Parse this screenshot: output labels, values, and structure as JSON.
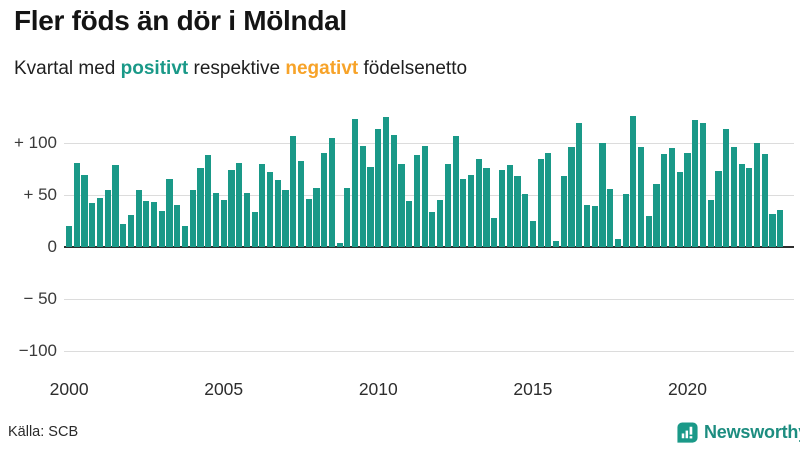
{
  "header": {
    "title": "Fler föds än dör i Mölndal",
    "subtitle_parts": {
      "lead": "Kvartal med ",
      "positive_word": "positivt",
      "middle": " respektive ",
      "negative_word": "negativt",
      "tail": " födelsenetto"
    }
  },
  "colors": {
    "positive": "#1a9988",
    "negative": "#f7a329",
    "grid": "#dcdcdc",
    "zero_axis": "#2e2e2e",
    "title_text": "#141414",
    "brand_teal": "#1d8d80"
  },
  "chart_data": {
    "type": "bar",
    "title": "Fler föds än dör i Mölndal",
    "subtitle": "Kvartal med positivt respektive negativt födelsenetto",
    "grid": true,
    "legend": "none",
    "ylim": [
      -100,
      130
    ],
    "yticks": [
      {
        "value": 100,
        "label": "+ 100"
      },
      {
        "value": 50,
        "label": "+ 50"
      },
      {
        "value": 0,
        "label": "0"
      },
      {
        "value": -50,
        "label": "− 50"
      },
      {
        "value": -100,
        "label": "−100"
      }
    ],
    "xticks": [
      {
        "year": 2000,
        "label": "2000"
      },
      {
        "year": 2005,
        "label": "2005"
      },
      {
        "year": 2010,
        "label": "2010"
      },
      {
        "year": 2015,
        "label": "2015"
      },
      {
        "year": 2020,
        "label": "2020"
      }
    ],
    "x": [
      "2000K1",
      "2000K2",
      "2000K3",
      "2000K4",
      "2001K1",
      "2001K2",
      "2001K3",
      "2001K4",
      "2002K1",
      "2002K2",
      "2002K3",
      "2002K4",
      "2003K1",
      "2003K2",
      "2003K3",
      "2003K4",
      "2004K1",
      "2004K2",
      "2004K3",
      "2004K4",
      "2005K1",
      "2005K2",
      "2005K3",
      "2005K4",
      "2006K1",
      "2006K2",
      "2006K3",
      "2006K4",
      "2007K1",
      "2007K2",
      "2007K3",
      "2007K4",
      "2008K1",
      "2008K2",
      "2008K3",
      "2008K4",
      "2009K1",
      "2009K2",
      "2009K3",
      "2009K4",
      "2010K1",
      "2010K2",
      "2010K3",
      "2010K4",
      "2011K1",
      "2011K2",
      "2011K3",
      "2011K4",
      "2012K1",
      "2012K2",
      "2012K3",
      "2012K4",
      "2013K1",
      "2013K2",
      "2013K3",
      "2013K4",
      "2014K1",
      "2014K2",
      "2014K3",
      "2014K4",
      "2015K1",
      "2015K2",
      "2015K3",
      "2015K4",
      "2016K1",
      "2016K2",
      "2016K3",
      "2016K4",
      "2017K1",
      "2017K2",
      "2017K3",
      "2017K4",
      "2018K1",
      "2018K2",
      "2018K3",
      "2018K4",
      "2019K1",
      "2019K2",
      "2019K3",
      "2019K4",
      "2020K1",
      "2020K2",
      "2020K3",
      "2020K4",
      "2021K1",
      "2021K2",
      "2021K3",
      "2021K4",
      "2022K1",
      "2022K2",
      "2022K3",
      "2022K4",
      "2023K1"
    ],
    "values": [
      20,
      81,
      69,
      42,
      47,
      55,
      79,
      22,
      31,
      55,
      44,
      43,
      35,
      65,
      40,
      20,
      55,
      76,
      88,
      52,
      45,
      74,
      81,
      52,
      34,
      80,
      72,
      64,
      55,
      107,
      83,
      46,
      57,
      90,
      105,
      4,
      57,
      123,
      97,
      77,
      113,
      125,
      108,
      80,
      44,
      88,
      97,
      34,
      45,
      80,
      107,
      65,
      69,
      85,
      76,
      28,
      74,
      79,
      68,
      51,
      25,
      85,
      90,
      6,
      68,
      96,
      119,
      40,
      39,
      100,
      56,
      8,
      51,
      126,
      96,
      30,
      61,
      89,
      95,
      72,
      90,
      122,
      119,
      45,
      73,
      113,
      96,
      80,
      76,
      100,
      89,
      32,
      36
    ]
  },
  "footer": {
    "source": "Källa: SCB",
    "brand_name": "Newsworthy"
  }
}
